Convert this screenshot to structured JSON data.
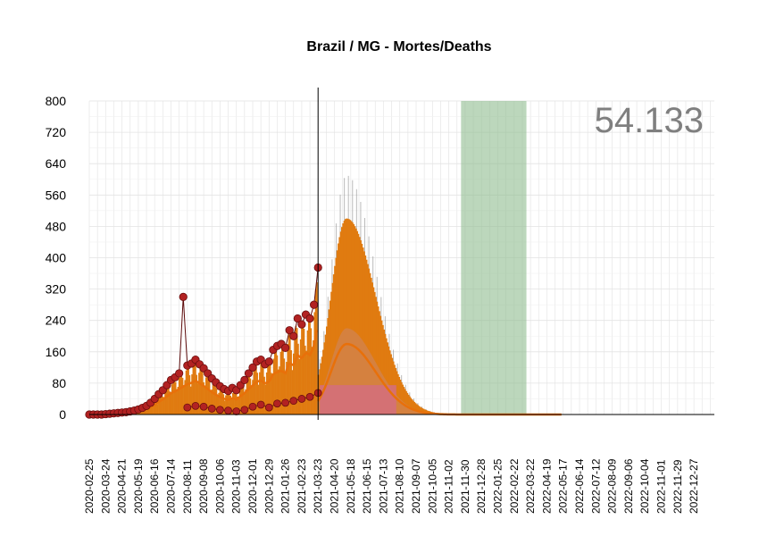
{
  "chart_data": {
    "type": "bar",
    "title": "Brazil / MG - Mortes/Deaths",
    "total_label": "54.133",
    "ylim": [
      0,
      800
    ],
    "yticks": [
      0,
      80,
      160,
      240,
      320,
      400,
      480,
      560,
      640,
      720,
      800
    ],
    "xlim": [
      "2020-02-25",
      "2023-01-31"
    ],
    "xtick_labels": [
      "2020-02-25",
      "2020-03-24",
      "2020-04-21",
      "2020-05-19",
      "2020-06-16",
      "2020-07-14",
      "2020-08-11",
      "2020-09-08",
      "2020-10-06",
      "2020-11-03",
      "2020-12-01",
      "2020-12-29",
      "2021-01-26",
      "2021-02-23",
      "2021-03-23",
      "2021-04-20",
      "2021-05-18",
      "2021-06-15",
      "2021-07-13",
      "2021-08-10",
      "2021-09-07",
      "2021-10-05",
      "2021-11-02",
      "2021-11-30",
      "2021-12-28",
      "2022-01-25",
      "2022-02-22",
      "2022-03-22",
      "2022-04-19",
      "2022-05-17",
      "2022-06-14",
      "2022-07-12",
      "2022-08-09",
      "2022-09-06",
      "2022-10-04",
      "2022-11-01",
      "2022-11-29",
      "2022-12-27"
    ],
    "grid": true,
    "today_line": "2021-03-23",
    "highlight_band": {
      "start": "2021-11-23",
      "end": "2022-03-15",
      "color": "#8fbc8f"
    },
    "forecast_band_red": {
      "start": "2021-03-26",
      "end": "2021-08-04",
      "value": 75,
      "color": "#d36e7e"
    },
    "colors": {
      "observed_point": "#b22222",
      "observed_point_edge": "#6b0f0f",
      "observed_line": "#5c0a0a",
      "bars": "#e07b10",
      "smooth": "#e8700a",
      "grey_bars": "#9e9e9e"
    },
    "observed_weekly": [
      {
        "date": "2020-02-25",
        "value": 0
      },
      {
        "date": "2020-03-03",
        "value": 0
      },
      {
        "date": "2020-03-10",
        "value": 0
      },
      {
        "date": "2020-03-17",
        "value": 0
      },
      {
        "date": "2020-03-24",
        "value": 1
      },
      {
        "date": "2020-03-31",
        "value": 2
      },
      {
        "date": "2020-04-07",
        "value": 3
      },
      {
        "date": "2020-04-14",
        "value": 4
      },
      {
        "date": "2020-04-21",
        "value": 5
      },
      {
        "date": "2020-04-28",
        "value": 6
      },
      {
        "date": "2020-05-05",
        "value": 8
      },
      {
        "date": "2020-05-12",
        "value": 10
      },
      {
        "date": "2020-05-19",
        "value": 13
      },
      {
        "date": "2020-05-26",
        "value": 17
      },
      {
        "date": "2020-06-02",
        "value": 22
      },
      {
        "date": "2020-06-09",
        "value": 30
      },
      {
        "date": "2020-06-16",
        "value": 40
      },
      {
        "date": "2020-06-23",
        "value": 52
      },
      {
        "date": "2020-06-30",
        "value": 62
      },
      {
        "date": "2020-07-07",
        "value": 75
      },
      {
        "date": "2020-07-14",
        "value": 88
      },
      {
        "date": "2020-07-21",
        "value": 95
      },
      {
        "date": "2020-07-28",
        "value": 105
      },
      {
        "date": "2020-08-04",
        "value": 300
      },
      {
        "date": "2020-08-11",
        "value": 125
      },
      {
        "date": "2020-08-18",
        "value": 130
      },
      {
        "date": "2020-08-25",
        "value": 140
      },
      {
        "date": "2020-09-01",
        "value": 128
      },
      {
        "date": "2020-09-08",
        "value": 118
      },
      {
        "date": "2020-09-15",
        "value": 105
      },
      {
        "date": "2020-09-22",
        "value": 92
      },
      {
        "date": "2020-09-29",
        "value": 82
      },
      {
        "date": "2020-10-06",
        "value": 72
      },
      {
        "date": "2020-10-13",
        "value": 65
      },
      {
        "date": "2020-10-20",
        "value": 60
      },
      {
        "date": "2020-10-27",
        "value": 68
      },
      {
        "date": "2020-11-03",
        "value": 62
      },
      {
        "date": "2020-11-10",
        "value": 75
      },
      {
        "date": "2020-11-17",
        "value": 88
      },
      {
        "date": "2020-11-24",
        "value": 105
      },
      {
        "date": "2020-12-01",
        "value": 120
      },
      {
        "date": "2020-12-08",
        "value": 135
      },
      {
        "date": "2020-12-15",
        "value": 140
      },
      {
        "date": "2020-12-22",
        "value": 128
      },
      {
        "date": "2020-12-29",
        "value": 135
      },
      {
        "date": "2021-01-05",
        "value": 165
      },
      {
        "date": "2021-01-12",
        "value": 175
      },
      {
        "date": "2021-01-19",
        "value": 180
      },
      {
        "date": "2021-01-26",
        "value": 170
      },
      {
        "date": "2021-02-02",
        "value": 215
      },
      {
        "date": "2021-02-09",
        "value": 200
      },
      {
        "date": "2021-02-16",
        "value": 245
      },
      {
        "date": "2021-02-23",
        "value": 230
      },
      {
        "date": "2021-03-02",
        "value": 255
      },
      {
        "date": "2021-03-09",
        "value": 245
      },
      {
        "date": "2021-03-16",
        "value": 280
      },
      {
        "date": "2021-03-23",
        "value": 375
      }
    ],
    "observed_weekday_lows": [
      {
        "date": "2020-08-11",
        "value": 18
      },
      {
        "date": "2020-08-25",
        "value": 22
      },
      {
        "date": "2020-09-08",
        "value": 20
      },
      {
        "date": "2020-09-22",
        "value": 15
      },
      {
        "date": "2020-10-06",
        "value": 12
      },
      {
        "date": "2020-10-20",
        "value": 10
      },
      {
        "date": "2020-11-03",
        "value": 8
      },
      {
        "date": "2020-11-17",
        "value": 12
      },
      {
        "date": "2020-12-01",
        "value": 20
      },
      {
        "date": "2020-12-15",
        "value": 25
      },
      {
        "date": "2020-12-29",
        "value": 18
      },
      {
        "date": "2021-01-12",
        "value": 28
      },
      {
        "date": "2021-01-26",
        "value": 30
      },
      {
        "date": "2021-02-09",
        "value": 35
      },
      {
        "date": "2021-02-23",
        "value": 40
      },
      {
        "date": "2021-03-09",
        "value": 45
      },
      {
        "date": "2021-03-23",
        "value": 55
      }
    ],
    "forecast_peak": {
      "date": "2021-05-11",
      "bars_max": 500,
      "grey_max": 610,
      "smooth_max": 180,
      "band_max": 220
    }
  }
}
